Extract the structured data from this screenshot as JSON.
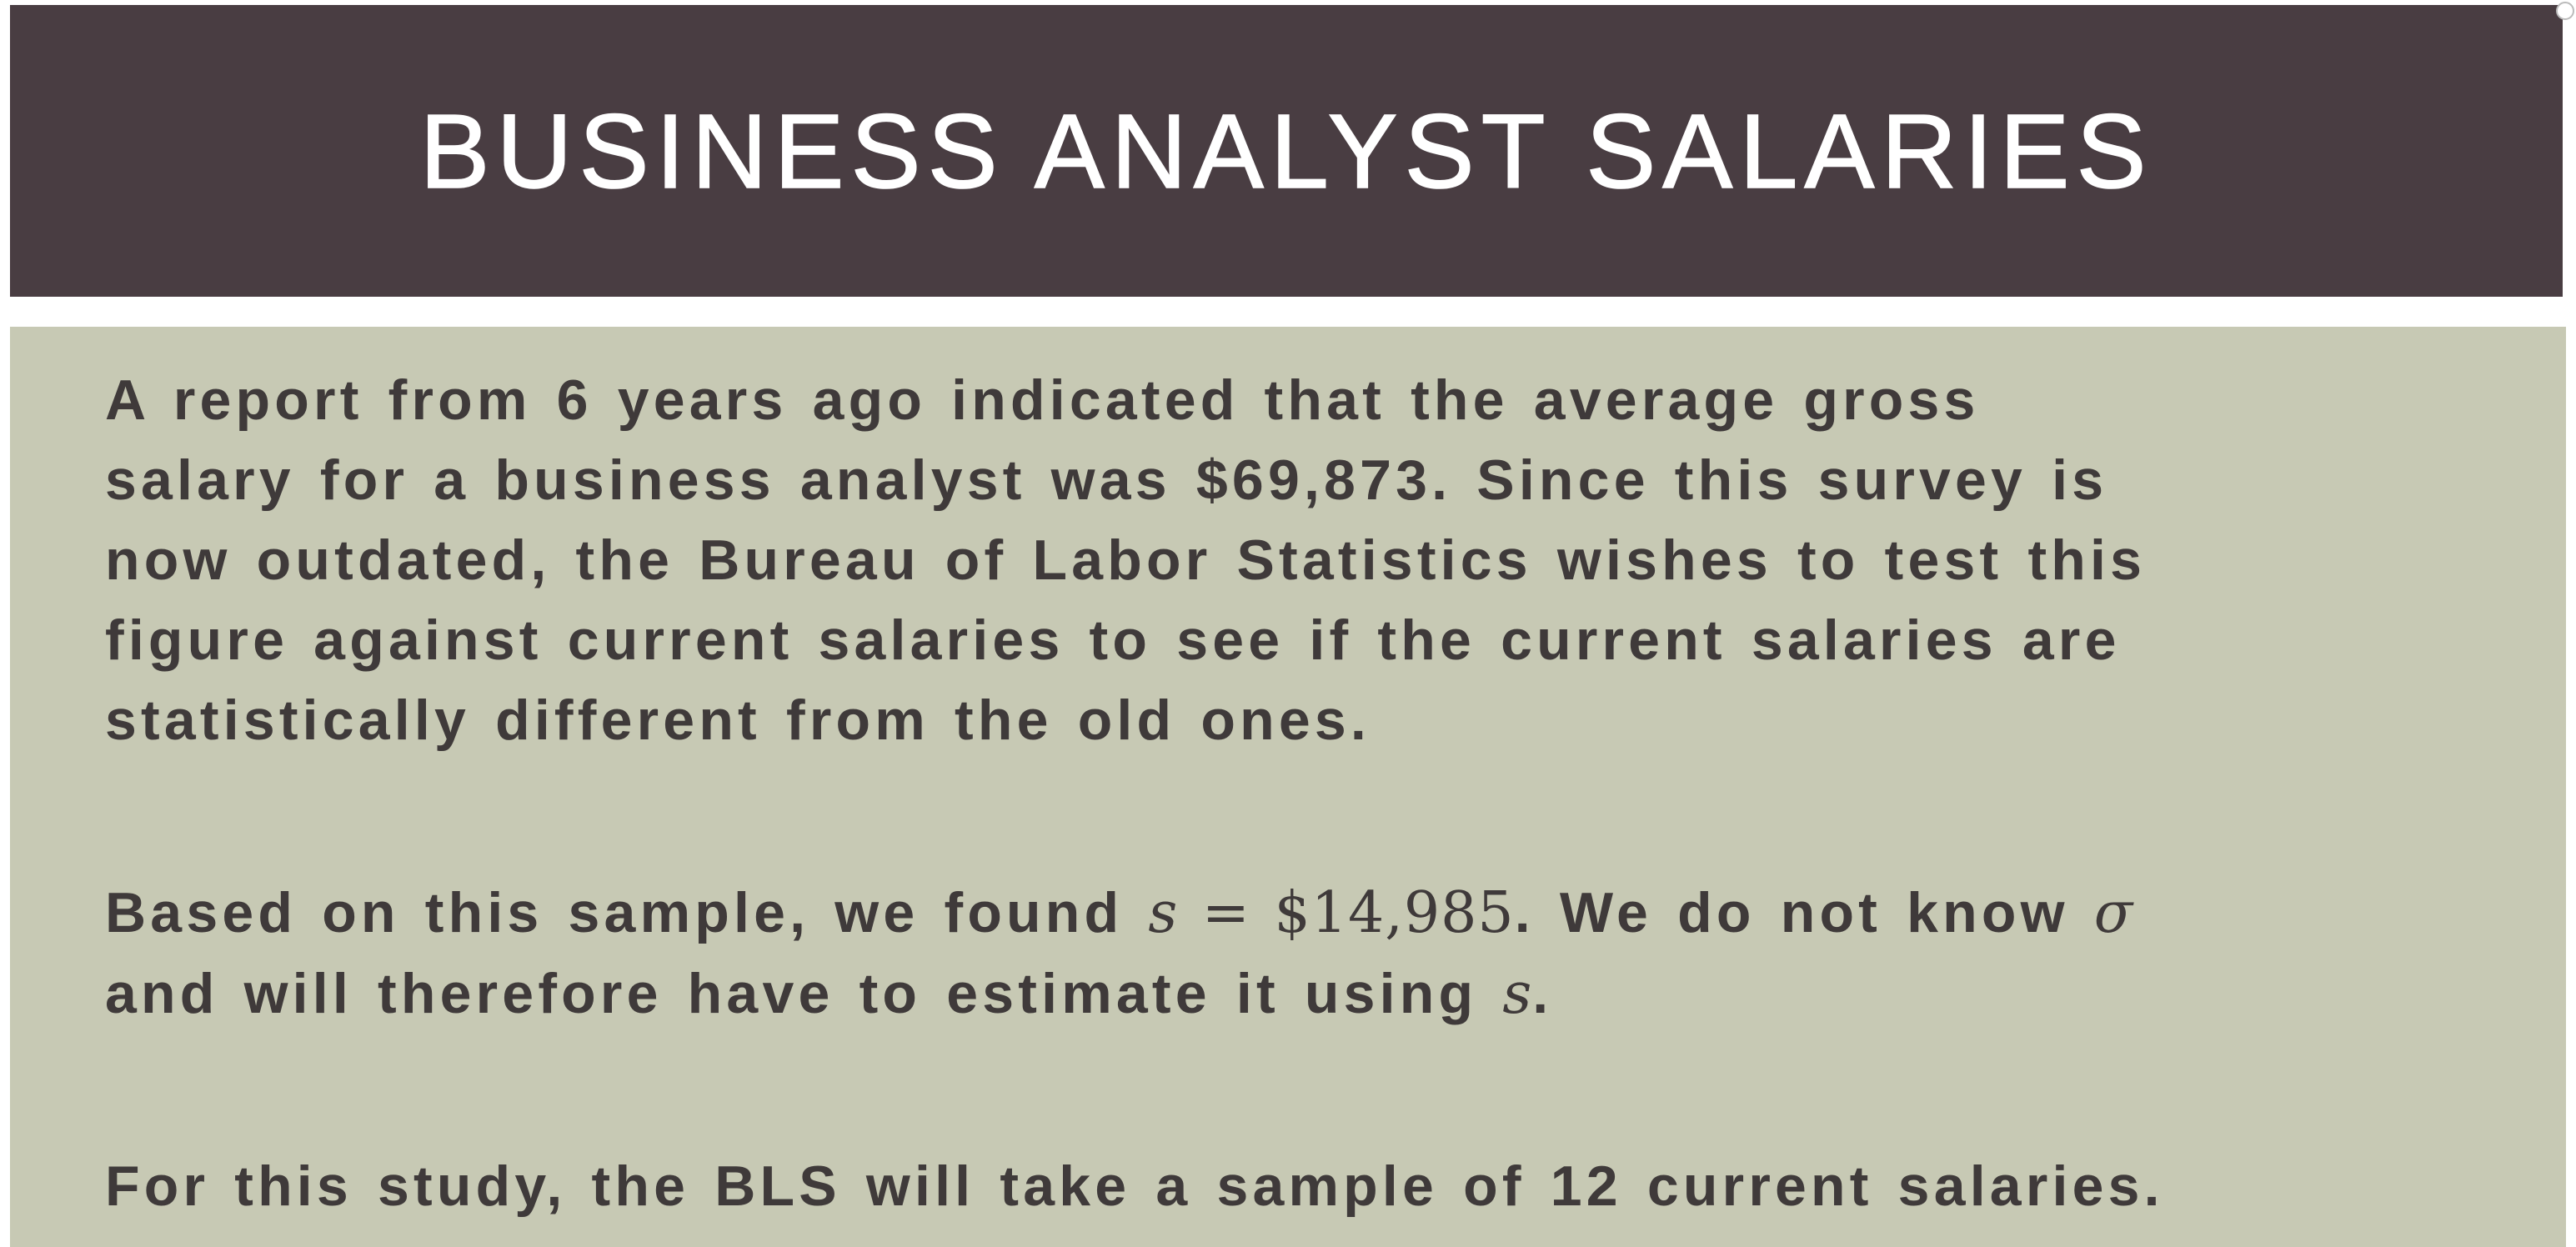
{
  "slide": {
    "title": "BUSINESS ANALYST SALARIES",
    "paragraph1": {
      "lines": [
        "A report from 6 years ago indicated that the average gross",
        "salary for a business analyst was $69,873. Since this survey is",
        "now outdated, the Bureau of Labor Statistics wishes to test this",
        "figure against current salaries to see if the current salaries are",
        "statistically different from the old ones."
      ]
    },
    "paragraph2": {
      "line1_prefix": "Based on this sample, we found ",
      "line1_math_var": "s",
      "line1_math_rest": " = $14,985",
      "line1_mid": ". We do not know ",
      "line1_sigma": "σ",
      "line2_prefix": "and will therefore have to estimate it using ",
      "line2_math_var": "s",
      "line2_suffix": "."
    },
    "paragraph3": {
      "text": "For this study, the BLS will take a sample of 12 current salaries."
    }
  },
  "colors": {
    "title_bar": "#493d42",
    "body_panel": "#c7c9b4",
    "body_text": "#3f3a3a",
    "title_text": "#ffffff"
  }
}
